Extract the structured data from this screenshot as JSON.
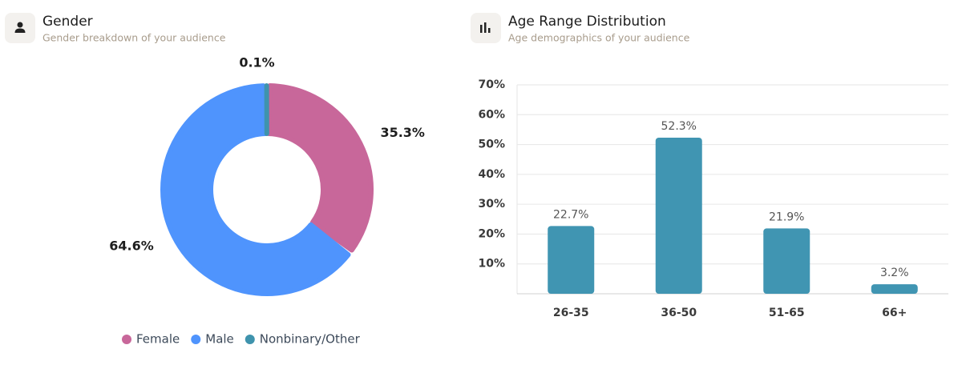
{
  "chart_data": [
    {
      "type": "donut",
      "title": "Gender",
      "subtitle": "Gender breakdown of your audience",
      "categories": [
        "Female",
        "Male",
        "Nonbinary/Other"
      ],
      "values": [
        35.3,
        64.6,
        0.1
      ],
      "value_labels": [
        "35.3%",
        "64.6%",
        "0.1%"
      ],
      "colors": [
        "#c8679a",
        "#4f94fd",
        "#3f93ad"
      ],
      "legend": "bottom"
    },
    {
      "type": "bar",
      "title": "Age Range Distribution",
      "subtitle": "Age demographics of your audience",
      "categories": [
        "26-35",
        "36-50",
        "51-65",
        "66+"
      ],
      "values": [
        22.7,
        52.3,
        21.9,
        3.2
      ],
      "value_labels": [
        "22.7%",
        "52.3%",
        "21.9%",
        "3.2%"
      ],
      "color": "#4095b2",
      "ylim": [
        0,
        70
      ],
      "yticks": [
        {
          "value": 10,
          "label": "10%"
        },
        {
          "value": 20,
          "label": "20%"
        },
        {
          "value": 30,
          "label": "30%"
        },
        {
          "value": 40,
          "label": "40%"
        },
        {
          "value": 50,
          "label": "50%"
        },
        {
          "value": 60,
          "label": "60%"
        },
        {
          "value": 70,
          "label": "70%"
        }
      ],
      "grid": true
    }
  ]
}
